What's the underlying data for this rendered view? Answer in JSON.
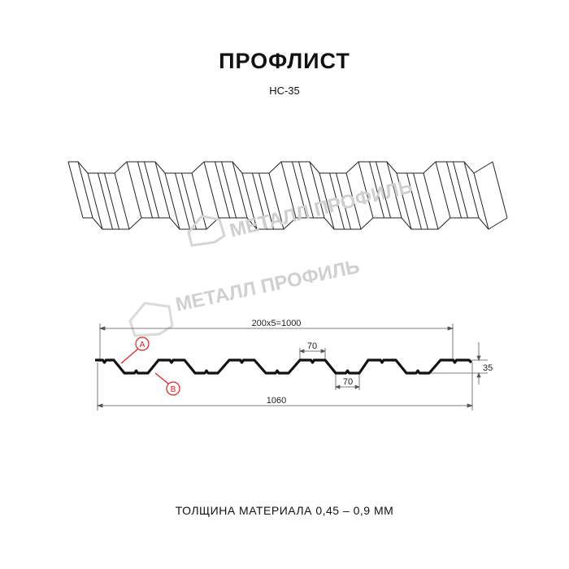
{
  "title": "ПРОФЛИСТ",
  "model": "НС-35",
  "watermark": "МЕТАЛЛ ПРОФИЛЬ",
  "dimensions": {
    "pitch": "200x5=1000",
    "total_width": "1060",
    "crest_width": "70",
    "trough_width": "70",
    "height": "35"
  },
  "markers": {
    "a": "A",
    "b": "B",
    "color": "#e02020"
  },
  "footer": "ТОЛЩИНА МАТЕРИАЛА 0,45 – 0,9 ММ"
}
